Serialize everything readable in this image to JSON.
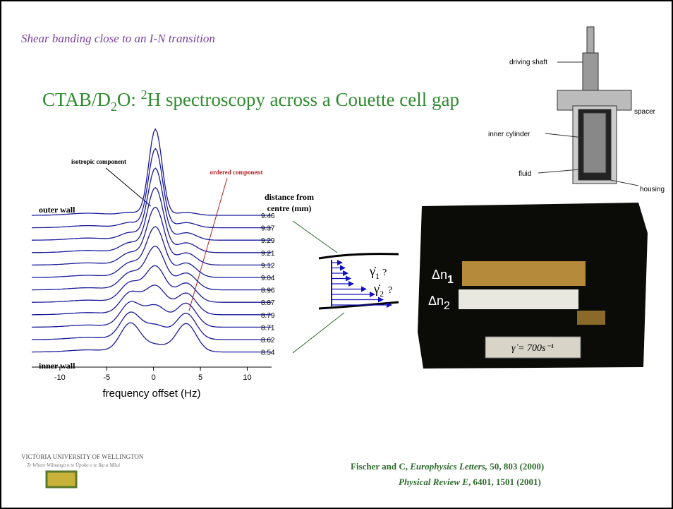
{
  "title": "Shear banding close to an I-N transition",
  "heading": {
    "a": "CTAB/D",
    "sub": "2",
    "b": "O: ",
    "sup": "2",
    "c": "H spectroscopy across a Couette cell gap"
  },
  "spectra": {
    "type": "line",
    "xlabel": "frequency offset (Hz)",
    "xlim": [
      -13,
      12.6
    ],
    "xticks": [
      -10,
      -5,
      0,
      5,
      10
    ],
    "isotropic_label": "isotropic component",
    "ordered_label": "ordered component",
    "outer_wall": "outer wall",
    "inner_wall": "inner wall",
    "distance_header": [
      "distance from",
      "centre (mm)"
    ],
    "distances": [
      9.46,
      9.37,
      9.29,
      9.21,
      9.12,
      9.04,
      8.96,
      8.87,
      8.79,
      8.71,
      8.62,
      8.54
    ]
  },
  "flow": {
    "gamma": "γ̇",
    "sub1": "1",
    "sub2": "2",
    "q": "?"
  },
  "apparatus": {
    "labels": [
      "driving shaft",
      "spacer",
      "inner cylinder",
      "fluid",
      "housing"
    ]
  },
  "photo": {
    "dn": "Δn",
    "sub1": "1",
    "sub2": "2",
    "rate": "γ̇ = 700s⁻¹"
  },
  "footer": {
    "university": "VICTORIA UNIVERSITY OF WELLINGTON",
    "motto": "Te Whare Wānanga o te Ūpoko o te Ika a Māui",
    "ref1": {
      "a": "Fischer and C, ",
      "journal": "Europhysics Letters,",
      "b": " 50, 803 (2000)"
    },
    "ref2": {
      "journal": "Physical Review E",
      "b": ", 6401, 1501 (2001)"
    }
  }
}
